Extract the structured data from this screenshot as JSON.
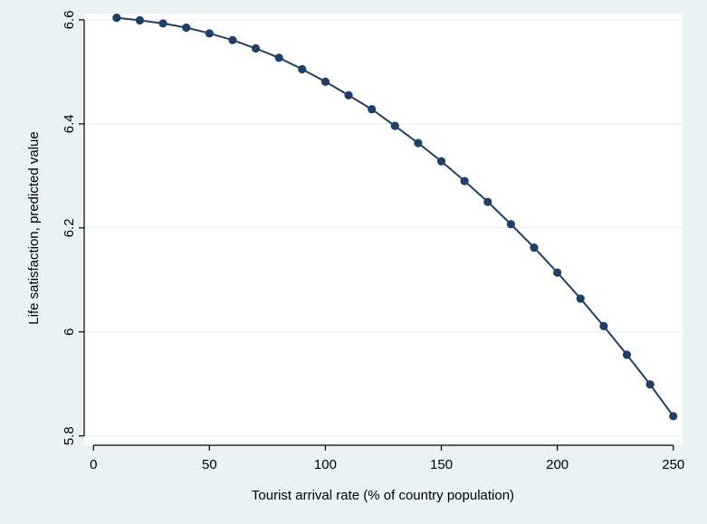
{
  "chart_data": {
    "type": "line",
    "xlabel": "Tourist arrival rate (% of country population)",
    "ylabel": "Life satisfaction, predicted value",
    "xlim": [
      -4,
      254
    ],
    "ylim": [
      5.782,
      6.612
    ],
    "x_ticks": [
      0,
      50,
      100,
      150,
      200,
      250
    ],
    "y_ticks": [
      5.8,
      6,
      6.2,
      6.4,
      6.6
    ],
    "x_tick_labels": [
      "0",
      "50",
      "100",
      "150",
      "200",
      "250"
    ],
    "y_tick_labels": [
      "5.8",
      "6",
      "6.2",
      "6.4",
      "6.6"
    ],
    "grid": true,
    "series": [
      {
        "color": "#1f3f68",
        "x": [
          10,
          20,
          30,
          40,
          50,
          60,
          70,
          80,
          90,
          100,
          110,
          120,
          130,
          140,
          150,
          160,
          170,
          180,
          190,
          200,
          210,
          220,
          230,
          240,
          250
        ],
        "y": [
          6.604,
          6.599,
          6.593,
          6.585,
          6.574,
          6.561,
          6.545,
          6.527,
          6.505,
          6.481,
          6.455,
          6.428,
          6.396,
          6.363,
          6.328,
          6.29,
          6.25,
          6.207,
          6.162,
          6.114,
          6.064,
          6.011,
          5.956,
          5.899,
          5.838
        ]
      }
    ]
  }
}
